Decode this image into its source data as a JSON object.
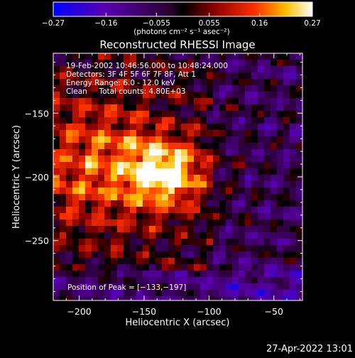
{
  "chart_data": {
    "type": "heatmap",
    "title": "Reconstructed RHESSI Image",
    "xlabel": "Heliocentric X (arcsec)",
    "ylabel": "Heliocentric Y (arcsec)",
    "xlim": [
      -220,
      -28
    ],
    "ylim": [
      -297,
      -103
    ],
    "x_ticks": [
      -200,
      -150,
      -100,
      -50
    ],
    "y_ticks": [
      -150,
      -200,
      -250
    ],
    "x_tick_labels": [
      "−200",
      "−150",
      "−100",
      "−50"
    ],
    "y_tick_labels": [
      "−150",
      "−200",
      "−250"
    ],
    "colorbar": {
      "min": -0.27,
      "max": 0.27,
      "tick_labels": [
        "−0.27",
        "−0.16",
        "−0.055",
        "0.055",
        "0.16",
        "0.27"
      ],
      "tick_values": [
        -0.27,
        -0.16,
        -0.055,
        0.055,
        0.16,
        0.27
      ],
      "unit_label": "(photons cm⁻² s⁻¹ asec⁻²)"
    },
    "peak": {
      "x": -133,
      "y": -197,
      "value": 0.27
    },
    "annotations": [
      "19-Feb-2002 10:46:56.000 to 10:48:24.000",
      "Detectors: 3F 4F 5F 6F 7F 8F, Att 1",
      "Energy Range: 6.0 - 12.0 keV",
      "Clean     Total counts: 4.80E+03"
    ],
    "peak_label": "Position of Peak = [−133,−197]"
  },
  "footer": {
    "date": "27-Apr-2022 13:01"
  }
}
